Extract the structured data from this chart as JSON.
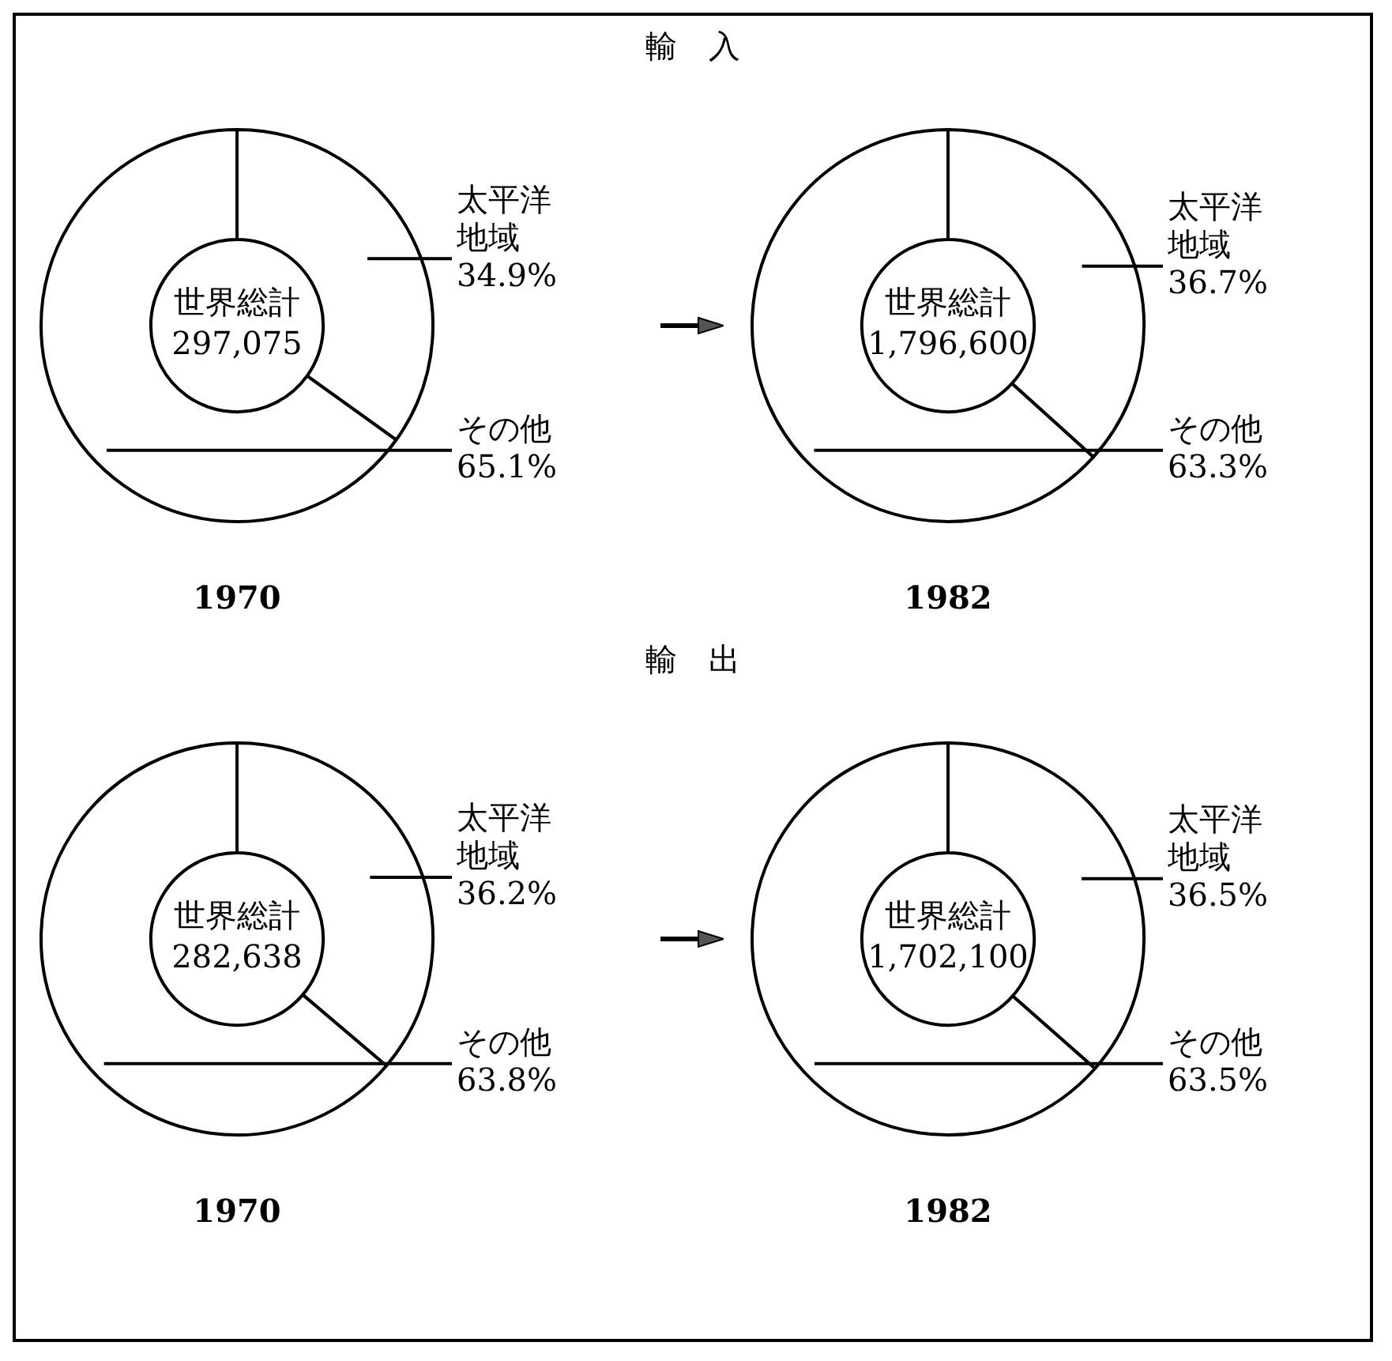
{
  "chart_data": [
    {
      "type": "donut",
      "title": "輸　入",
      "xlabel": "1970",
      "categories": [
        "太平洋地域",
        "その他"
      ],
      "values": [
        34.9,
        65.1
      ],
      "value_labels": [
        "34.9%",
        "65.1%"
      ],
      "colors": [
        "#ffffff",
        "#ffffff"
      ],
      "annotations": [
        "世界総計",
        "297,075"
      ],
      "legend": false
    },
    {
      "type": "donut",
      "xlabel": "1982",
      "categories": [
        "太平洋地域",
        "その他"
      ],
      "values": [
        36.7,
        63.3
      ],
      "value_labels": [
        "36.7%",
        "63.3%"
      ],
      "colors": [
        "#ffffff",
        "#ffffff"
      ],
      "annotations": [
        "世界総計",
        "1,796,600"
      ],
      "legend": false
    },
    {
      "type": "donut",
      "title": "輸　出",
      "xlabel": "1970",
      "categories": [
        "太平洋地域",
        "その他"
      ],
      "values": [
        36.2,
        63.8
      ],
      "value_labels": [
        "36.2%",
        "63.8%"
      ],
      "colors": [
        "#ffffff",
        "#ffffff"
      ],
      "annotations": [
        "世界総計",
        "282,638"
      ],
      "legend": false
    },
    {
      "type": "donut",
      "xlabel": "1982",
      "categories": [
        "太平洋地域",
        "その他"
      ],
      "values": [
        36.5,
        63.5
      ],
      "value_labels": [
        "36.5%",
        "63.5%"
      ],
      "colors": [
        "#ffffff",
        "#ffffff"
      ],
      "annotations": [
        "世界総計",
        "1,702,100"
      ],
      "legend": false
    }
  ]
}
